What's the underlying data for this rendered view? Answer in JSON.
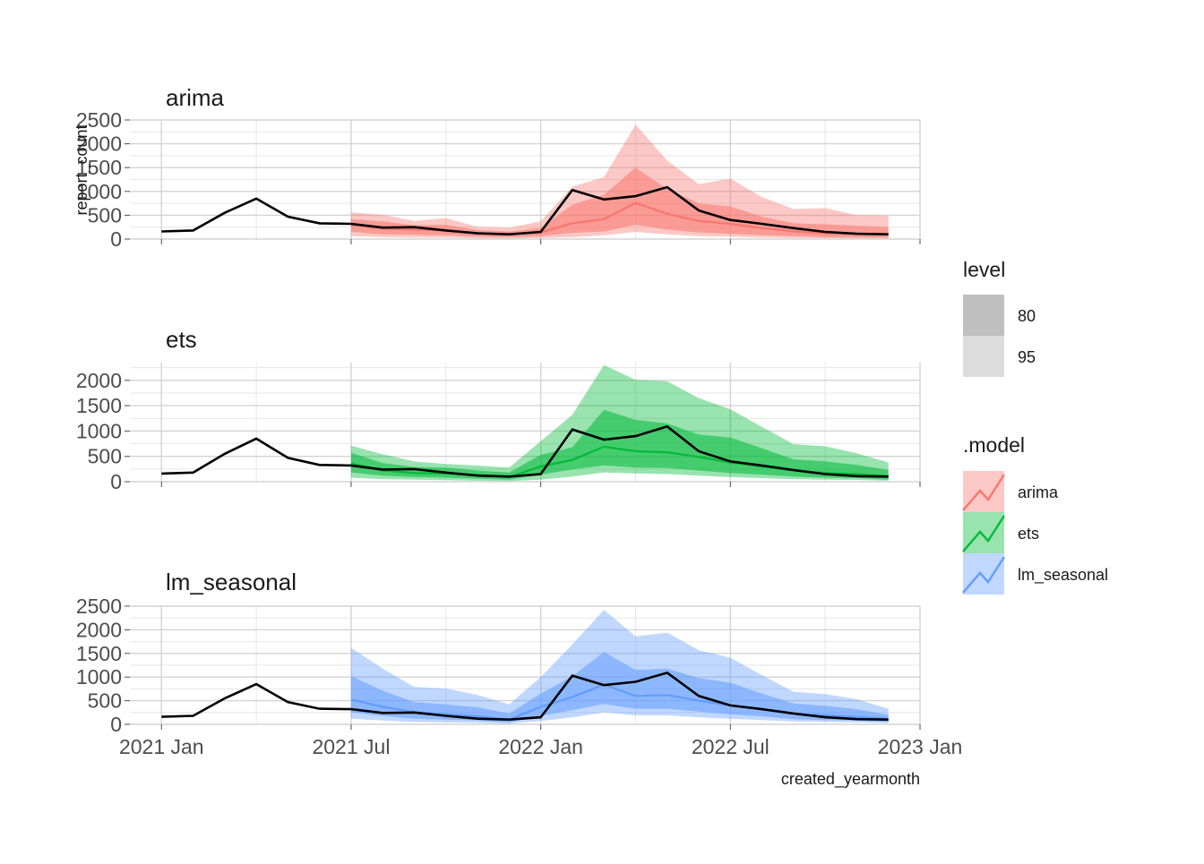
{
  "chart_data": {
    "type": "line",
    "facets": [
      "arima",
      "ets",
      "lm_seasonal"
    ],
    "xlabel": "created_yearmonth",
    "ylabel": "report_count",
    "x_tick_labels": [
      "2021 Jan",
      "2021 Jul",
      "2022 Jan",
      "2022 Jul",
      "2023 Jan"
    ],
    "x_ticks": [
      "2021-01",
      "2021-07",
      "2022-01",
      "2022-07",
      "2023-01"
    ],
    "y_ticks": {
      "arima": [
        0,
        500,
        1000,
        1500,
        2000,
        2500
      ],
      "ets": [
        0,
        500,
        1000,
        1500,
        2000
      ],
      "lm_seasonal": [
        0,
        500,
        1000,
        1500,
        2000,
        2500
      ]
    },
    "ylim": {
      "arima": [
        0,
        2500
      ],
      "ets": [
        0,
        2350
      ],
      "lm_seasonal": [
        0,
        2500
      ]
    },
    "xlim": [
      "2020-12",
      "2023-01"
    ],
    "colors": {
      "arima": "#F8766D",
      "ets": "#00BA38",
      "lm_seasonal": "#619CFF",
      "actual": "#000000"
    },
    "legend": {
      "level_title": "level",
      "levels": [
        "80",
        "95"
      ],
      "model_title": ".model",
      "models": [
        "arima",
        "ets",
        "lm_seasonal"
      ],
      "position": "right"
    },
    "actual": {
      "x": [
        "2021-01",
        "2021-02",
        "2021-03",
        "2021-04",
        "2021-05",
        "2021-06",
        "2021-07",
        "2021-08",
        "2021-09",
        "2021-10",
        "2021-11",
        "2021-12",
        "2022-01",
        "2022-02",
        "2022-03",
        "2022-04",
        "2022-05",
        "2022-06",
        "2022-07",
        "2022-08",
        "2022-09",
        "2022-10",
        "2022-11",
        "2022-12"
      ],
      "values": [
        160,
        180,
        550,
        850,
        470,
        330,
        320,
        240,
        250,
        180,
        120,
        100,
        150,
        1030,
        830,
        900,
        1090,
        600,
        400,
        320,
        230,
        150,
        110,
        100
      ]
    },
    "forecast_x": [
      "2021-07",
      "2021-08",
      "2021-09",
      "2021-10",
      "2021-11",
      "2021-12",
      "2022-01",
      "2022-02",
      "2022-03",
      "2022-04",
      "2022-05",
      "2022-06",
      "2022-07",
      "2022-08",
      "2022-09",
      "2022-10",
      "2022-11",
      "2022-12"
    ],
    "forecasts": {
      "arima": {
        "mean": [
          300,
          220,
          200,
          180,
          120,
          100,
          140,
          330,
          420,
          760,
          530,
          380,
          320,
          230,
          160,
          120,
          110,
          100
        ],
        "lo80": [
          150,
          100,
          90,
          80,
          50,
          40,
          60,
          130,
          160,
          300,
          200,
          140,
          110,
          80,
          60,
          40,
          35,
          30
        ],
        "hi80": [
          420,
          370,
          290,
          300,
          190,
          160,
          230,
          720,
          930,
          1500,
          1050,
          750,
          680,
          470,
          330,
          310,
          280,
          250
        ],
        "lo95": [
          60,
          40,
          30,
          30,
          15,
          15,
          20,
          40,
          80,
          150,
          100,
          60,
          50,
          30,
          20,
          15,
          15,
          10
        ],
        "hi95": [
          560,
          510,
          380,
          440,
          260,
          240,
          370,
          1100,
          1300,
          2400,
          1650,
          1150,
          1270,
          880,
          630,
          650,
          500,
          490
        ]
      },
      "ets": {
        "mean": [
          360,
          220,
          170,
          160,
          130,
          90,
          300,
          430,
          690,
          600,
          580,
          490,
          380,
          300,
          220,
          170,
          150,
          110
        ],
        "lo80": [
          180,
          120,
          90,
          80,
          60,
          40,
          140,
          240,
          320,
          280,
          270,
          220,
          170,
          140,
          100,
          80,
          70,
          40
        ],
        "hi80": [
          570,
          370,
          290,
          280,
          220,
          180,
          530,
          680,
          1420,
          1220,
          1150,
          930,
          870,
          660,
          440,
          400,
          330,
          230
        ],
        "lo95": [
          80,
          50,
          40,
          30,
          20,
          15,
          40,
          100,
          180,
          160,
          150,
          120,
          90,
          70,
          50,
          40,
          35,
          20
        ],
        "hi95": [
          710,
          540,
          400,
          350,
          320,
          280,
          800,
          1320,
          2300,
          2010,
          1980,
          1650,
          1430,
          1080,
          740,
          700,
          560,
          380
        ]
      },
      "lm_seasonal": {
        "mean": [
          520,
          370,
          260,
          210,
          170,
          100,
          370,
          580,
          840,
          600,
          620,
          500,
          400,
          320,
          230,
          190,
          160,
          120
        ],
        "lo80": [
          250,
          180,
          120,
          100,
          80,
          40,
          180,
          300,
          430,
          330,
          330,
          270,
          210,
          170,
          110,
          90,
          80,
          50
        ],
        "hi80": [
          1020,
          710,
          470,
          420,
          360,
          230,
          650,
          1020,
          1530,
          1150,
          1180,
          980,
          880,
          650,
          440,
          390,
          320,
          200
        ],
        "lo95": [
          120,
          80,
          50,
          40,
          30,
          15,
          70,
          150,
          250,
          190,
          190,
          150,
          120,
          90,
          60,
          50,
          40,
          25
        ],
        "hi95": [
          1620,
          1180,
          790,
          760,
          620,
          420,
          1000,
          1690,
          2420,
          1860,
          1940,
          1570,
          1410,
          1040,
          690,
          640,
          530,
          330
        ]
      }
    }
  }
}
